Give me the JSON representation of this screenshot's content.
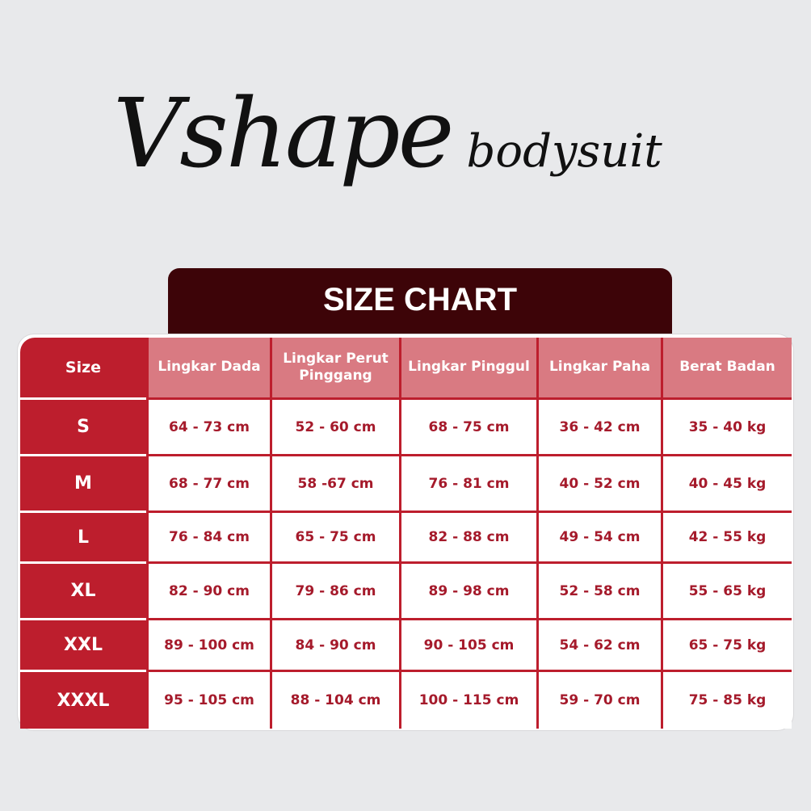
{
  "logo": {
    "main": "Vshape",
    "sub": "bodysuit"
  },
  "banner": {
    "title": "SIZE CHART"
  },
  "table": {
    "size_header": "Size",
    "headers": [
      "Lingkar Dada",
      "Lingkar Perut Pinggang",
      "Lingkar Pinggul",
      "Lingkar Paha",
      "Berat Badan"
    ],
    "rows": [
      {
        "size": "S",
        "values": [
          "64 - 73 cm",
          "52 - 60 cm",
          "68 - 75 cm",
          "36 - 42 cm",
          "35 - 40 kg"
        ]
      },
      {
        "size": "M",
        "values": [
          "68 - 77 cm",
          "58 -67 cm",
          "76 - 81 cm",
          "40 - 52 cm",
          "40 - 45 kg"
        ]
      },
      {
        "size": "L",
        "values": [
          "76 - 84 cm",
          "65 - 75 cm",
          "82 - 88 cm",
          "49 - 54 cm",
          "42 - 55 kg"
        ]
      },
      {
        "size": "XL",
        "values": [
          "82 - 90 cm",
          "79 - 86 cm",
          "89 - 98 cm",
          "52 - 58 cm",
          "55 - 65 kg"
        ]
      },
      {
        "size": "XXL",
        "values": [
          "89 - 100 cm",
          "84 - 90 cm",
          "90 - 105 cm",
          "54 - 62 cm",
          "65 - 75 kg"
        ]
      },
      {
        "size": "XXXL",
        "values": [
          "95 - 105 cm",
          "88 - 104 cm",
          "100 - 115 cm",
          "59 - 70 cm",
          "75 - 85 kg"
        ]
      }
    ]
  },
  "colors": {
    "background": "#e8e9eb",
    "red": "#bd1e2d",
    "header_pink": "#d97a82",
    "banner": "#3d0408",
    "value_text": "#a51a2b"
  }
}
